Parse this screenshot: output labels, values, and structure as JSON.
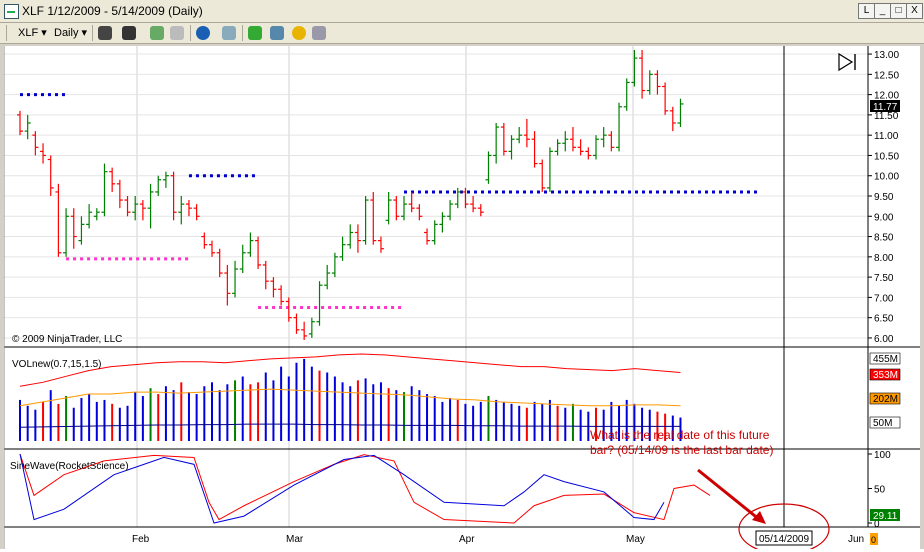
{
  "window": {
    "title": "XLF  1/12/2009 - 5/14/2009 (Daily)",
    "min_label": "_",
    "max_label": "□",
    "close_label": "X",
    "restore_label": "L"
  },
  "toolbar": {
    "instrument": "XLF",
    "period": "Daily",
    "icons": [
      "bar-style-icon",
      "draw-pencil-icon",
      "zoom-in-icon",
      "zoom-out-icon",
      "globe-icon",
      "properties-icon",
      "strategy-icon",
      "chart-trader-icon",
      "money-icon",
      "data-box-icon"
    ]
  },
  "price_panel": {
    "copyright": "© 2009 NinjaTrader, LLC",
    "last_price_label": "11.77",
    "end_marker_icon": "go-to-end-icon"
  },
  "volume_panel": {
    "label": "VOLnew(0.7,15,1.5)",
    "badges": [
      {
        "text": "455M",
        "color": "#ffffff"
      },
      {
        "text": "353M",
        "color": "#ff0000"
      },
      {
        "text": "202M",
        "color": "#ff9900"
      },
      {
        "text": "50M",
        "color": "#ffffff"
      }
    ]
  },
  "sine_panel": {
    "label": "SineWave(RocketScience)",
    "badge": "29.11"
  },
  "annotation": {
    "text": "What is the real date of this future bar? (05/14/09 is the last bar date)",
    "color": "#cc0000"
  },
  "x_axis": {
    "dates": [
      "Feb",
      "Mar",
      "Apr",
      "May",
      "Jun"
    ],
    "highlight": "05/14/2009",
    "last_label": "0"
  },
  "chart_data": {
    "type": "bar",
    "title": "XLF 1/12/2009 - 5/14/2009 (Daily)",
    "y_ticks": [
      "6.00",
      "6.50",
      "7.00",
      "7.50",
      "8.00",
      "8.50",
      "9.00",
      "9.50",
      "10.00",
      "10.50",
      "11.00",
      "11.50",
      "12.00",
      "12.50",
      "13.00"
    ],
    "ylim": [
      5.9,
      13.1
    ],
    "ohlc": [
      [
        11.5,
        11.6,
        11.0,
        11.1
      ],
      [
        11.1,
        11.5,
        10.9,
        11.3
      ],
      [
        11.0,
        11.1,
        10.5,
        10.7
      ],
      [
        10.6,
        10.8,
        10.3,
        10.5
      ],
      [
        10.4,
        10.5,
        9.5,
        9.7
      ],
      [
        9.6,
        9.8,
        8.0,
        8.1
      ],
      [
        8.1,
        9.2,
        8.0,
        9.0
      ],
      [
        9.0,
        9.2,
        8.2,
        8.5
      ],
      [
        8.4,
        9.0,
        8.3,
        8.8
      ],
      [
        8.8,
        9.3,
        8.7,
        9.1
      ],
      [
        9.0,
        9.2,
        8.9,
        9.1
      ],
      [
        9.1,
        10.3,
        9.0,
        10.1
      ],
      [
        10.1,
        10.2,
        9.6,
        9.8
      ],
      [
        9.8,
        9.9,
        9.2,
        9.4
      ],
      [
        9.4,
        9.5,
        9.0,
        9.1
      ],
      [
        9.1,
        9.5,
        8.9,
        9.3
      ],
      [
        9.3,
        9.4,
        8.9,
        9.2
      ],
      [
        9.2,
        9.8,
        8.7,
        9.6
      ],
      [
        9.6,
        10.0,
        9.5,
        9.9
      ],
      [
        9.9,
        10.1,
        9.7,
        10.0
      ],
      [
        10.0,
        10.1,
        8.9,
        9.1
      ],
      [
        9.1,
        9.5,
        8.8,
        9.3
      ],
      [
        9.3,
        9.4,
        9.0,
        9.2
      ],
      [
        9.2,
        9.3,
        8.9,
        9.0
      ],
      [
        8.5,
        8.6,
        8.2,
        8.3
      ],
      [
        8.3,
        8.4,
        8.0,
        8.1
      ],
      [
        8.1,
        8.2,
        7.5,
        7.6
      ],
      [
        7.6,
        7.8,
        6.8,
        7.1
      ],
      [
        7.1,
        7.9,
        7.0,
        7.7
      ],
      [
        7.7,
        8.3,
        7.6,
        8.1
      ],
      [
        8.1,
        8.6,
        8.0,
        8.4
      ],
      [
        8.4,
        8.5,
        7.7,
        7.8
      ],
      [
        7.8,
        7.9,
        7.2,
        7.4
      ],
      [
        7.4,
        7.5,
        7.0,
        7.2
      ],
      [
        7.2,
        7.3,
        6.8,
        6.9
      ],
      [
        6.9,
        7.0,
        6.4,
        6.5
      ],
      [
        6.5,
        6.6,
        6.1,
        6.2
      ],
      [
        6.2,
        6.4,
        5.95,
        6.05
      ],
      [
        6.1,
        6.5,
        6.0,
        6.4
      ],
      [
        6.4,
        7.4,
        6.3,
        7.3
      ],
      [
        7.3,
        7.8,
        7.2,
        7.6
      ],
      [
        7.6,
        8.1,
        7.5,
        8.0
      ],
      [
        8.0,
        8.5,
        7.9,
        8.3
      ],
      [
        8.3,
        8.8,
        8.2,
        8.6
      ],
      [
        8.6,
        8.8,
        8.1,
        8.4
      ],
      [
        8.4,
        9.5,
        8.3,
        9.4
      ],
      [
        9.4,
        9.6,
        8.3,
        8.4
      ],
      [
        8.4,
        8.5,
        8.1,
        8.2
      ],
      [
        8.9,
        9.6,
        8.8,
        9.4
      ],
      [
        9.4,
        9.5,
        8.9,
        9.0
      ],
      [
        9.0,
        9.5,
        8.9,
        9.3
      ],
      [
        9.3,
        9.6,
        9.1,
        9.2
      ],
      [
        9.2,
        9.3,
        8.9,
        9.0
      ],
      [
        8.6,
        8.7,
        8.3,
        8.4
      ],
      [
        8.4,
        8.9,
        8.3,
        8.8
      ],
      [
        8.8,
        9.1,
        8.6,
        9.0
      ],
      [
        9.0,
        9.4,
        8.9,
        9.3
      ],
      [
        9.3,
        9.7,
        9.2,
        9.6
      ],
      [
        9.6,
        9.7,
        9.2,
        9.3
      ],
      [
        9.3,
        9.5,
        9.1,
        9.2
      ],
      [
        9.2,
        9.3,
        9.0,
        9.1
      ],
      [
        9.9,
        10.6,
        9.8,
        10.5
      ],
      [
        10.5,
        11.3,
        10.3,
        11.2
      ],
      [
        11.2,
        11.3,
        10.5,
        10.6
      ],
      [
        10.6,
        11.0,
        10.4,
        10.9
      ],
      [
        10.9,
        11.2,
        10.8,
        11.0
      ],
      [
        11.0,
        11.4,
        10.7,
        10.9
      ],
      [
        10.9,
        11.1,
        10.2,
        10.3
      ],
      [
        10.3,
        10.4,
        9.6,
        9.7
      ],
      [
        9.7,
        10.7,
        9.6,
        10.6
      ],
      [
        10.6,
        10.9,
        10.5,
        10.8
      ],
      [
        10.8,
        11.1,
        10.6,
        10.9
      ],
      [
        10.9,
        11.2,
        10.6,
        10.7
      ],
      [
        10.7,
        10.9,
        10.5,
        10.6
      ],
      [
        10.6,
        10.7,
        10.4,
        10.5
      ],
      [
        10.5,
        11.0,
        10.4,
        10.9
      ],
      [
        10.9,
        11.2,
        10.7,
        11.0
      ],
      [
        11.0,
        11.1,
        10.6,
        10.7
      ],
      [
        10.7,
        11.8,
        10.6,
        11.7
      ],
      [
        11.7,
        12.4,
        11.6,
        12.3
      ],
      [
        12.3,
        13.1,
        12.2,
        12.9
      ],
      [
        12.9,
        13.1,
        11.9,
        12.1
      ],
      [
        12.1,
        12.6,
        12.0,
        12.5
      ],
      [
        12.5,
        12.6,
        12.0,
        12.2
      ],
      [
        12.2,
        12.3,
        11.5,
        11.6
      ],
      [
        11.6,
        11.7,
        11.1,
        11.3
      ],
      [
        11.3,
        11.9,
        11.2,
        11.77
      ]
    ],
    "levels": [
      {
        "y": 12.0,
        "from": 0,
        "to": 6,
        "color": "#0000cc"
      },
      {
        "y": 7.95,
        "from": 6,
        "to": 22,
        "color": "#ff33cc"
      },
      {
        "y": 10.0,
        "from": 22,
        "to": 31,
        "color": "#0000cc"
      },
      {
        "y": 6.75,
        "from": 31,
        "to": 50,
        "color": "#ff33cc"
      },
      {
        "y": 9.6,
        "from": 50,
        "to": 96,
        "color": "#0000cc"
      }
    ],
    "volume": [
      210,
      180,
      160,
      200,
      260,
      190,
      230,
      170,
      220,
      240,
      200,
      210,
      190,
      170,
      180,
      250,
      230,
      270,
      240,
      280,
      260,
      300,
      250,
      240,
      280,
      300,
      260,
      290,
      310,
      330,
      290,
      300,
      350,
      310,
      380,
      330,
      400,
      420,
      380,
      360,
      350,
      330,
      300,
      280,
      310,
      320,
      290,
      300,
      270,
      260,
      250,
      280,
      260,
      240,
      230,
      200,
      220,
      210,
      190,
      180,
      200,
      230,
      210,
      200,
      190,
      180,
      170,
      200,
      190,
      210,
      180,
      170,
      190,
      160,
      150,
      170,
      160,
      200,
      180,
      210,
      190,
      170,
      160,
      150,
      140,
      130,
      120
    ],
    "volume_colors_note": "blue=up, red=down, green=neutral",
    "volume_ylim": [
      0,
      455
    ],
    "sine_ylim": [
      0,
      100
    ]
  }
}
